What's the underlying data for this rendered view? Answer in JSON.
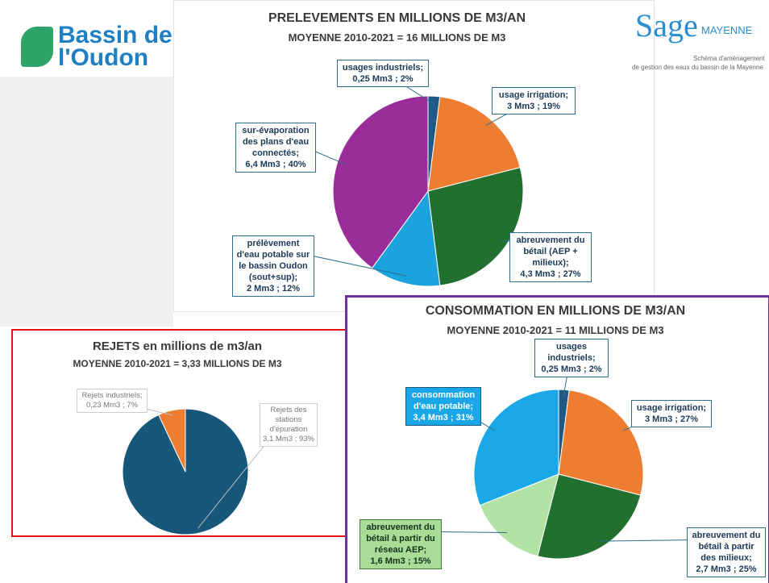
{
  "branding": {
    "left_line1": "Bassin de",
    "left_line2": "l'Oudon",
    "right_name": "Sage",
    "right_sub": "MAYENNE",
    "right_line1": "Schéma d'aménagement",
    "right_line2": "de gestion des eaux du bassin de la Mayenne"
  },
  "chart_data": [
    {
      "type": "pie",
      "title": "PRELEVEMENTS EN MILLIONS DE M3/AN",
      "subtitle": "MOYENNE 2010-2021 = 16 MILLIONS DE M3",
      "categories": [
        "usages industriels;",
        "usage irrigation;",
        "abreuvement du bétail (AEP + milieux);",
        "prélèvement d'eau potable sur le bassin Oudon (sout+sup);",
        "sur-évaporation des plans d'eau connectés;"
      ],
      "values": [
        2,
        19,
        27,
        12,
        40
      ],
      "value_labels": [
        "0,25 Mm3 ; 2%",
        "3 Mm3 ; 19%",
        "4,3 Mm3 ; 27%",
        "2 Mm3 ; 12%",
        "6,4 Mm3 ; 40%"
      ],
      "colors": [
        "#1f5a86",
        "#ed7d31",
        "#22702f",
        "#1aa3dc",
        "#9b2d9b"
      ]
    },
    {
      "type": "pie",
      "title": "REJETS en millions de m3/an",
      "subtitle": "MOYENNE 2010-2021 = 3,33 MILLIONS DE M3",
      "categories": [
        "Rejets des stations d'épuration",
        "Rejets industriels;"
      ],
      "values": [
        93,
        7
      ],
      "value_labels": [
        "3,1 Mm3 ; 93%",
        "0,23 Mm3 ; 7%"
      ],
      "colors": [
        "#17577a",
        "#ed7d31"
      ]
    },
    {
      "type": "pie",
      "title": "CONSOMMATION EN MILLIONS DE M3/AN",
      "subtitle": "MOYENNE 2010-2021 = 11 MILLIONS DE M3",
      "categories": [
        "usages industriels;",
        "usage irrigation;",
        "abreuvement du bétail à partir des milieux;",
        "abreuvement du bétail à partir du réseau AEP;",
        "consommation d'eau potable;"
      ],
      "values": [
        2,
        27,
        25,
        15,
        31
      ],
      "value_labels": [
        "0,25 Mm3 ; 2%",
        "3 Mm3 ; 27%",
        "2,7 Mm3 ; 25%",
        "1,6 Mm3 ; 15%",
        "3,4 Mm3 ; 31%"
      ],
      "colors": [
        "#1f5a86",
        "#ed7d31",
        "#22702f",
        "#b3e2a5",
        "#1aa7e8"
      ]
    }
  ]
}
